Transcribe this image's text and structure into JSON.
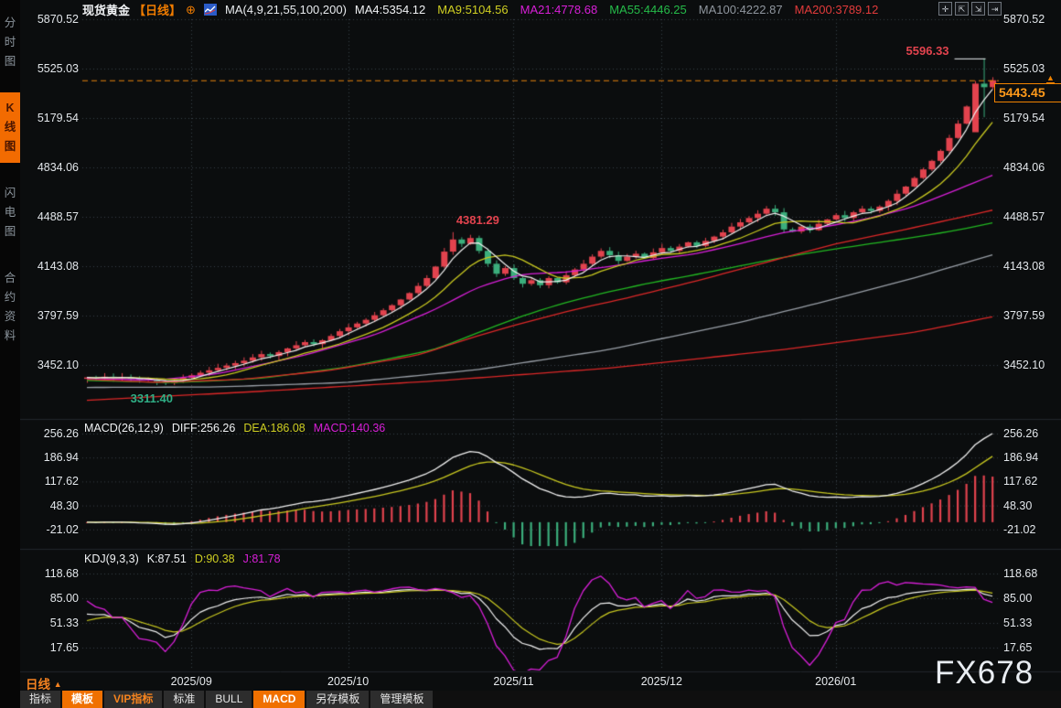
{
  "header": {
    "symbol": "现货黄金",
    "period_tag": "【日线】",
    "ma_settings": "MA(4,9,21,55,100,200)",
    "ma_values": [
      {
        "label": "MA4:5354.12",
        "color": "#f0f2f4"
      },
      {
        "label": "MA9:5104.56",
        "color": "#cfcf22"
      },
      {
        "label": "MA21:4778.68",
        "color": "#d81fd8"
      },
      {
        "label": "MA55:4446.25",
        "color": "#25bb49"
      },
      {
        "label": "MA100:4222.87",
        "color": "#8f969e"
      },
      {
        "label": "MA200:3789.12",
        "color": "#e23b3b"
      }
    ],
    "window_buttons": [
      {
        "name": "pan-icon",
        "glyph": "✛"
      },
      {
        "name": "x-scale-icon",
        "glyph": "⇱"
      },
      {
        "name": "y-scale-icon",
        "glyph": "⇲"
      },
      {
        "name": "restore-icon",
        "glyph": "⇥"
      }
    ]
  },
  "sidebar": {
    "tabs": [
      {
        "label": "分时图",
        "active": false
      },
      {
        "label": "K线图",
        "active": true
      },
      {
        "label": "闪电图",
        "active": false
      },
      {
        "label": "合约资料",
        "active": false
      }
    ]
  },
  "macd_panel": {
    "title": "MACD(26,12,9)",
    "diff_label": "DIFF:256.26",
    "dea_label": "DEA:186.08",
    "macd_label": "MACD:140.36",
    "axis": [
      "256.26",
      "186.94",
      "117.62",
      "48.30",
      "-21.02"
    ]
  },
  "kdj_panel": {
    "title": "KDJ(9,3,3)",
    "k_label": "K:87.51",
    "d_label": "D:90.38",
    "j_label": "J:81.78",
    "axis": [
      "118.68",
      "85.00",
      "51.33",
      "17.65"
    ]
  },
  "bottom": {
    "period_label": "日线",
    "toolbar": [
      {
        "label": "指标",
        "style": "plain"
      },
      {
        "label": "模板",
        "style": "orange"
      },
      {
        "label": "VIP指标",
        "style": "vip"
      },
      {
        "label": "标准",
        "style": "plain"
      },
      {
        "label": "BULL",
        "style": "plain"
      },
      {
        "label": "MACD",
        "style": "orange"
      },
      {
        "label": "另存模板",
        "style": "plain"
      },
      {
        "label": "管理模板",
        "style": "plain"
      }
    ]
  },
  "watermark": "FX678",
  "chart_data": {
    "type": "candlestick",
    "title": "现货黄金 日线",
    "main_axis": [
      "5870.52",
      "5525.03",
      "5179.54",
      "4834.06",
      "4488.57",
      "4143.08",
      "3797.59",
      "3452.10"
    ],
    "months": [
      {
        "label": "2025/09",
        "index": 12
      },
      {
        "label": "2025/10",
        "index": 30
      },
      {
        "label": "2025/11",
        "index": 49
      },
      {
        "label": "2025/12",
        "index": 66
      },
      {
        "label": "2026/01",
        "index": 86
      }
    ],
    "current_price": "5443.45",
    "open_first": 3355,
    "closes": [
      3365,
      3358,
      3370,
      3362,
      3368,
      3355,
      3348,
      3352,
      3338,
      3325,
      3345,
      3362,
      3380,
      3398,
      3415,
      3432,
      3448,
      3465,
      3482,
      3505,
      3528,
      3515,
      3542,
      3568,
      3590,
      3612,
      3598,
      3625,
      3655,
      3688,
      3715,
      3742,
      3768,
      3800,
      3835,
      3870,
      3910,
      3955,
      4005,
      4060,
      4140,
      4245,
      4330,
      4300,
      4340,
      4250,
      4160,
      4090,
      4130,
      4060,
      4020,
      4045,
      4010,
      4060,
      4030,
      4080,
      4120,
      4160,
      4210,
      4250,
      4220,
      4180,
      4210,
      4230,
      4200,
      4240,
      4270,
      4250,
      4280,
      4310,
      4285,
      4320,
      4350,
      4380,
      4420,
      4450,
      4480,
      4510,
      4545,
      4520,
      4400,
      4385,
      4420,
      4395,
      4440,
      4470,
      4500,
      4480,
      4520,
      4545,
      4530,
      4560,
      4600,
      4650,
      4700,
      4760,
      4820,
      4880,
      4950,
      5040,
      5140,
      5260,
      5420,
      5395,
      5443.45
    ],
    "overrides": {
      "9": {
        "low": 3311.4
      },
      "42": {
        "high": 4381.29
      },
      "102": {
        "open": 5080
      },
      "103": {
        "high": 5596.33,
        "low": 5185
      },
      "104": {
        "high": 5465,
        "low": 5380
      }
    },
    "annotations": [
      {
        "text": "5596.33",
        "index": 103,
        "price": 5596.33,
        "type": "high"
      },
      {
        "text": "4381.29",
        "index": 42,
        "price": 4381.29,
        "type": "peak"
      },
      {
        "text": "3311.40",
        "index": 9,
        "price": 3311.4,
        "type": "low"
      }
    ],
    "ma_lines": {
      "ma21_keypoints": [
        [
          0,
          3358
        ],
        [
          8,
          3345
        ],
        [
          15,
          3390
        ],
        [
          25,
          3520
        ],
        [
          33,
          3660
        ],
        [
          40,
          3840
        ],
        [
          45,
          4000
        ],
        [
          50,
          4090
        ],
        [
          55,
          4100
        ],
        [
          60,
          4140
        ],
        [
          65,
          4190
        ],
        [
          70,
          4230
        ],
        [
          75,
          4300
        ],
        [
          80,
          4380
        ],
        [
          85,
          4420
        ],
        [
          90,
          4480
        ],
        [
          95,
          4560
        ],
        [
          100,
          4680
        ],
        [
          104,
          4778.68
        ]
      ],
      "ma55_keypoints": [
        [
          0,
          3345
        ],
        [
          10,
          3328
        ],
        [
          20,
          3358
        ],
        [
          30,
          3438
        ],
        [
          40,
          3560
        ],
        [
          45,
          3680
        ],
        [
          50,
          3795
        ],
        [
          55,
          3890
        ],
        [
          60,
          3965
        ],
        [
          65,
          4030
        ],
        [
          70,
          4085
        ],
        [
          75,
          4145
        ],
        [
          80,
          4205
        ],
        [
          85,
          4255
        ],
        [
          90,
          4300
        ],
        [
          95,
          4345
        ],
        [
          100,
          4395
        ],
        [
          104,
          4446.25
        ]
      ],
      "ma100_keypoints": [
        [
          0,
          3295
        ],
        [
          15,
          3298
        ],
        [
          30,
          3330
        ],
        [
          45,
          3420
        ],
        [
          60,
          3560
        ],
        [
          75,
          3750
        ],
        [
          85,
          3900
        ],
        [
          95,
          4060
        ],
        [
          104,
          4222.87
        ]
      ],
      "ma200_keypoints": [
        [
          0,
          3205
        ],
        [
          20,
          3268
        ],
        [
          40,
          3340
        ],
        [
          60,
          3430
        ],
        [
          80,
          3560
        ],
        [
          95,
          3680
        ],
        [
          104,
          3789.12
        ]
      ],
      "extra_red_line_keypoints": [
        [
          0,
          3352
        ],
        [
          8,
          3330
        ],
        [
          18,
          3352
        ],
        [
          28,
          3415
        ],
        [
          38,
          3520
        ],
        [
          44,
          3640
        ],
        [
          50,
          3745
        ],
        [
          56,
          3840
        ],
        [
          62,
          3920
        ],
        [
          70,
          4040
        ],
        [
          78,
          4170
        ],
        [
          86,
          4300
        ],
        [
          94,
          4400
        ],
        [
          100,
          4480
        ],
        [
          104,
          4535
        ]
      ]
    },
    "colors": {
      "up": "#e2434e",
      "down": "#3bae7c",
      "ma4": "#f0f0f0",
      "ma9": "#c8c820",
      "ma21": "#d81fd8",
      "ma55": "#22b822",
      "ma100": "#9aa0a8",
      "ma200": "#dc2828",
      "grid": "#3a4048",
      "price_line": "#e8820c"
    }
  }
}
